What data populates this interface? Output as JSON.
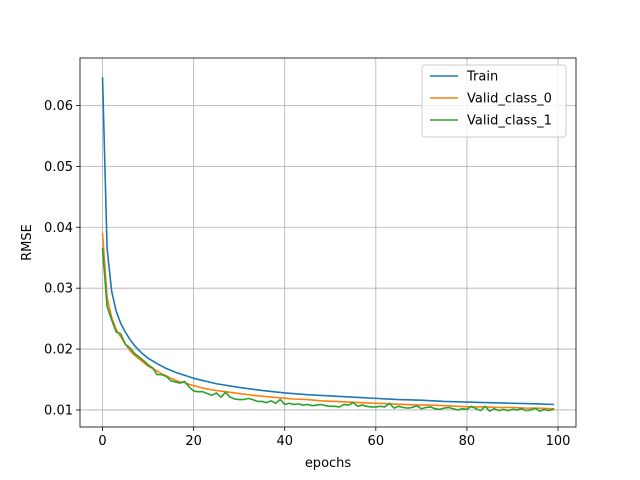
{
  "chart_data": {
    "type": "line",
    "title": "",
    "xlabel": "epochs",
    "ylabel": "RMSE",
    "xlim": [
      -4.95,
      103.95
    ],
    "ylim": [
      0.0072,
      0.0678
    ],
    "xticks": [
      0,
      20,
      40,
      60,
      80,
      100
    ],
    "yticks": [
      0.01,
      0.02,
      0.03,
      0.04,
      0.05,
      0.06
    ],
    "xtick_labels": [
      "0",
      "20",
      "40",
      "60",
      "80",
      "100"
    ],
    "ytick_labels": [
      "0.01",
      "0.02",
      "0.03",
      "0.04",
      "0.05",
      "0.06"
    ],
    "grid": true,
    "legend_position": "top-right",
    "series": [
      {
        "name": "Train",
        "color": "#1f77b4",
        "x": [
          0,
          1,
          2,
          3,
          4,
          5,
          6,
          7,
          8,
          9,
          10,
          12,
          14,
          16,
          18,
          20,
          25,
          30,
          35,
          40,
          45,
          50,
          55,
          60,
          65,
          70,
          75,
          80,
          85,
          90,
          95,
          99
        ],
        "y": [
          0.0645,
          0.0365,
          0.0295,
          0.0262,
          0.0242,
          0.0228,
          0.0216,
          0.0206,
          0.0198,
          0.0191,
          0.0185,
          0.0176,
          0.0168,
          0.0162,
          0.0157,
          0.0152,
          0.0143,
          0.0137,
          0.0132,
          0.0128,
          0.0125,
          0.0123,
          0.0121,
          0.0119,
          0.0117,
          0.0116,
          0.0114,
          0.0113,
          0.0112,
          0.0111,
          0.011,
          0.0109
        ]
      },
      {
        "name": "Valid_class_0",
        "color": "#ff7f0e",
        "x": [
          0,
          1,
          2,
          3,
          4,
          5,
          6,
          7,
          8,
          9,
          10,
          11,
          12,
          13,
          14,
          15,
          16,
          17,
          18,
          19,
          20,
          22,
          24,
          26,
          28,
          30,
          33,
          36,
          39,
          42,
          45,
          48,
          51,
          54,
          57,
          60,
          63,
          66,
          69,
          72,
          75,
          78,
          81,
          84,
          87,
          90,
          93,
          96,
          99
        ],
        "y": [
          0.039,
          0.0285,
          0.0252,
          0.0232,
          0.022,
          0.0208,
          0.0198,
          0.019,
          0.0184,
          0.0178,
          0.0172,
          0.0168,
          0.0164,
          0.0159,
          0.0156,
          0.0152,
          0.0149,
          0.0146,
          0.0145,
          0.0142,
          0.014,
          0.0136,
          0.0133,
          0.0131,
          0.0129,
          0.0127,
          0.0124,
          0.0122,
          0.012,
          0.0118,
          0.0117,
          0.0115,
          0.0114,
          0.0113,
          0.0112,
          0.0111,
          0.011,
          0.0109,
          0.0108,
          0.0108,
          0.0107,
          0.0106,
          0.0105,
          0.0105,
          0.0104,
          0.0104,
          0.0103,
          0.0103,
          0.0102
        ]
      },
      {
        "name": "Valid_class_1",
        "color": "#2ca02c",
        "x": [
          0,
          1,
          2,
          3,
          4,
          5,
          6,
          7,
          8,
          9,
          10,
          11,
          12,
          13,
          14,
          15,
          16,
          17,
          18,
          19,
          20,
          21,
          22,
          23,
          24,
          25,
          26,
          27,
          28,
          29,
          30,
          31,
          32,
          33,
          34,
          35,
          36,
          37,
          38,
          39,
          40,
          41,
          42,
          43,
          44,
          45,
          46,
          47,
          48,
          49,
          50,
          51,
          52,
          53,
          54,
          55,
          56,
          57,
          58,
          59,
          60,
          61,
          62,
          63,
          64,
          65,
          66,
          67,
          68,
          69,
          70,
          71,
          72,
          73,
          74,
          75,
          76,
          77,
          78,
          79,
          80,
          81,
          82,
          83,
          84,
          85,
          86,
          87,
          88,
          89,
          90,
          91,
          92,
          93,
          94,
          95,
          96,
          97,
          98,
          99
        ],
        "y": [
          0.0365,
          0.027,
          0.0248,
          0.0228,
          0.0225,
          0.0208,
          0.0202,
          0.0193,
          0.0187,
          0.0181,
          0.0174,
          0.0169,
          0.0158,
          0.0158,
          0.0155,
          0.0148,
          0.0146,
          0.0144,
          0.0147,
          0.0138,
          0.0131,
          0.013,
          0.013,
          0.0127,
          0.0124,
          0.0128,
          0.0121,
          0.0129,
          0.0121,
          0.0118,
          0.0117,
          0.0117,
          0.0119,
          0.0117,
          0.0114,
          0.0114,
          0.0112,
          0.0115,
          0.0111,
          0.0117,
          0.0109,
          0.0111,
          0.0109,
          0.011,
          0.0108,
          0.0109,
          0.0107,
          0.0108,
          0.0109,
          0.0107,
          0.0106,
          0.0106,
          0.0105,
          0.0109,
          0.0108,
          0.0112,
          0.0106,
          0.0108,
          0.0106,
          0.0105,
          0.0105,
          0.0106,
          0.0105,
          0.0111,
          0.0103,
          0.0106,
          0.0104,
          0.0103,
          0.0104,
          0.0107,
          0.0102,
          0.0104,
          0.0105,
          0.0102,
          0.0101,
          0.0103,
          0.0104,
          0.0102,
          0.01,
          0.0102,
          0.0101,
          0.0106,
          0.0102,
          0.0099,
          0.0106,
          0.0098,
          0.0102,
          0.0099,
          0.0101,
          0.0099,
          0.0101,
          0.01,
          0.0102,
          0.0099,
          0.01,
          0.0103,
          0.0098,
          0.0101,
          0.0099,
          0.0101
        ]
      }
    ]
  }
}
